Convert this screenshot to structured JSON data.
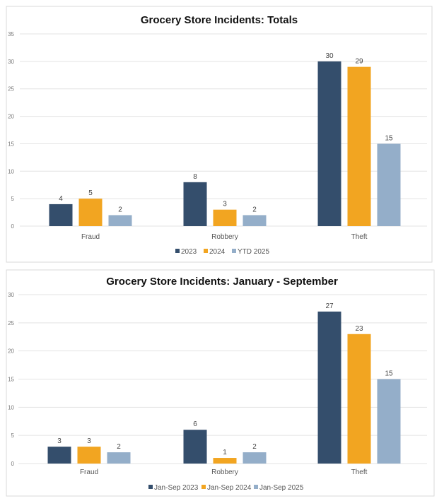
{
  "chart_data": [
    {
      "type": "bar",
      "title": "Grocery Store Incidents: Totals",
      "categories": [
        "Fraud",
        "Robbery",
        "Theft"
      ],
      "series": [
        {
          "name": "2023",
          "color": "#344e6c",
          "values": [
            4,
            8,
            30
          ]
        },
        {
          "name": "2024",
          "color": "#f2a521",
          "values": [
            5,
            3,
            29
          ]
        },
        {
          "name": "YTD 2025",
          "color": "#94aec9",
          "values": [
            2,
            2,
            15
          ]
        }
      ],
      "yticks": [
        "0",
        "5",
        "10",
        "15",
        "20",
        "25",
        "30",
        "35"
      ],
      "ylim": [
        0,
        35
      ],
      "xlabel": "",
      "ylabel": "",
      "grid": true,
      "legend": "bottom"
    },
    {
      "type": "bar",
      "title": "Grocery Store Incidents: January - September",
      "categories": [
        "Fraud",
        "Robbery",
        "Theft"
      ],
      "series": [
        {
          "name": "Jan-Sep 2023",
          "color": "#344e6c",
          "values": [
            3,
            6,
            27
          ]
        },
        {
          "name": "Jan-Sep 2024",
          "color": "#f2a521",
          "values": [
            3,
            1,
            23
          ]
        },
        {
          "name": "Jan-Sep 2025",
          "color": "#94aec9",
          "values": [
            2,
            2,
            15
          ]
        }
      ],
      "yticks": [
        "0",
        "5",
        "10",
        "15",
        "20",
        "25",
        "30"
      ],
      "ylim": [
        0,
        30
      ],
      "xlabel": "",
      "ylabel": "",
      "grid": true,
      "legend": "bottom"
    }
  ]
}
